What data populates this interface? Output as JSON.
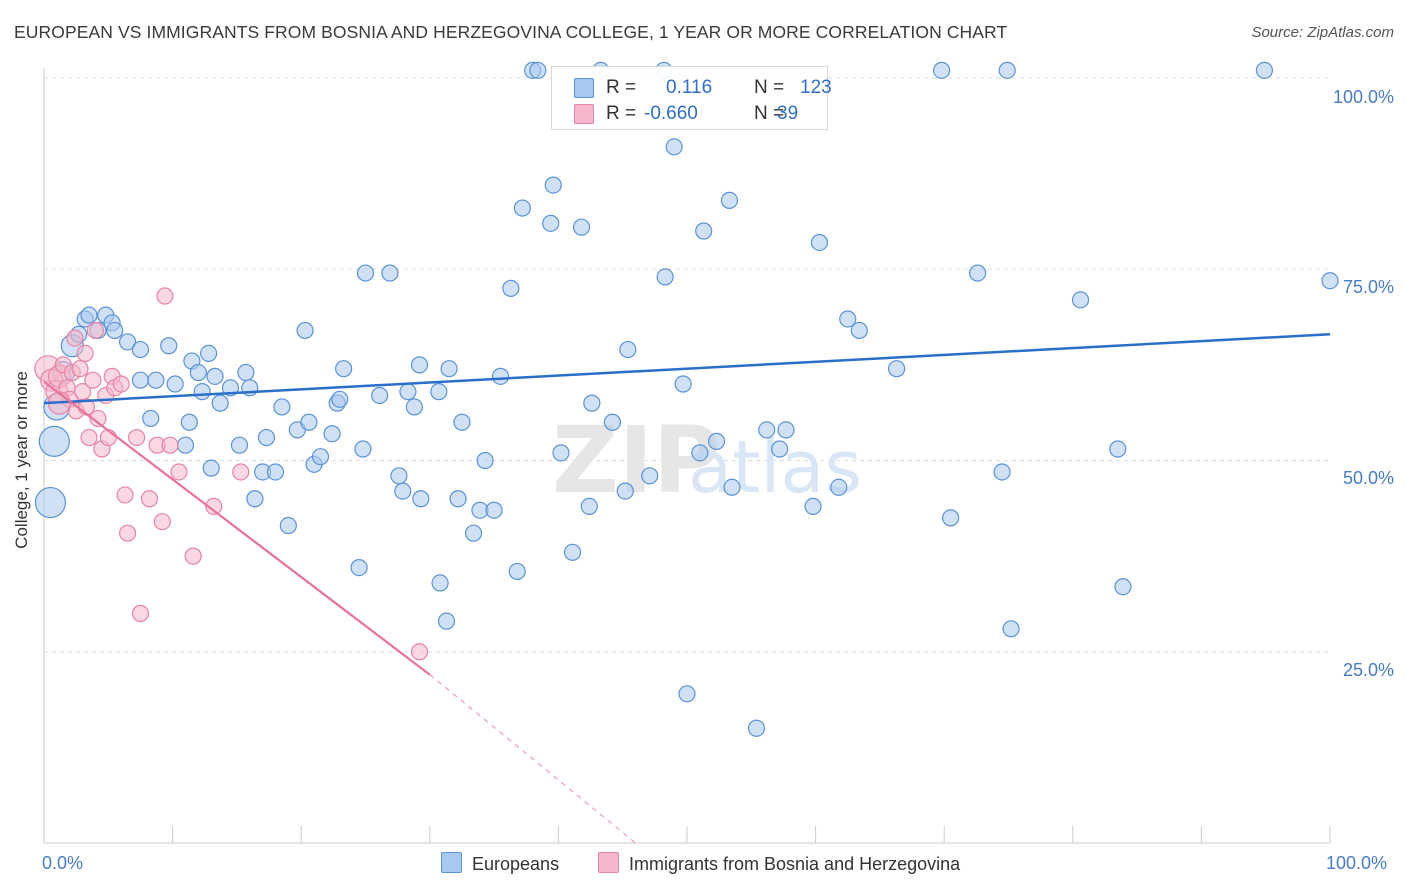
{
  "title": "EUROPEAN VS IMMIGRANTS FROM BOSNIA AND HERZEGOVINA COLLEGE, 1 YEAR OR MORE CORRELATION CHART",
  "source": "Source: ZipAtlas.com",
  "watermark_zip": "ZIP",
  "watermark_atlas": "atlas",
  "colors": {
    "blue_fill": "#a9c8ef",
    "blue_stroke": "#5b93d6",
    "blue_line": "#2a6fc9",
    "pink_fill": "#f5b8ca",
    "pink_stroke": "#e884a4",
    "pink_line": "#e5739a",
    "axis_text": "#4a7cc4",
    "grid": "#dddddd"
  },
  "legend": {
    "rows": [
      {
        "r_label": "R =",
        "r_value": "0.116",
        "n_label": "N =",
        "n_value": "123"
      },
      {
        "r_label": "R =",
        "r_value": "-0.660",
        "n_label": "N =",
        "n_value": "39"
      }
    ]
  },
  "bottom_legend": {
    "europeans": "Europeans",
    "bosnia": "Immigrants from Bosnia and Herzegovina"
  },
  "y_ticks": [
    "100.0%",
    "75.0%",
    "50.0%",
    "25.0%"
  ],
  "x_ticks": {
    "left": "0.0%",
    "right": "100.0%"
  },
  "chart_data": {
    "type": "scatter",
    "title": "EUROPEAN VS IMMIGRANTS FROM BOSNIA AND HERZEGOVINA COLLEGE, 1 YEAR OR MORE CORRELATION CHART",
    "xlabel": "",
    "ylabel": "College, 1 year or more",
    "xlim": [
      0,
      100
    ],
    "ylim": [
      0,
      102
    ],
    "grid": true,
    "legend_position": "top-center",
    "series": [
      {
        "name": "Europeans",
        "R": 0.116,
        "N": 123,
        "trend": {
          "x": [
            0,
            100
          ],
          "y": [
            57.5,
            66.5
          ]
        },
        "points": [
          [
            0.5,
            44.5,
            4
          ],
          [
            0.8,
            52.5,
            4
          ],
          [
            1,
            57,
            3
          ],
          [
            1.5,
            61.5,
            2
          ],
          [
            2.2,
            65,
            2
          ],
          [
            2.7,
            66.5,
            1
          ],
          [
            3.2,
            68.5,
            1
          ],
          [
            3.5,
            69,
            1
          ],
          [
            4.2,
            67,
            1
          ],
          [
            4.8,
            69,
            1
          ],
          [
            5.3,
            68,
            1
          ],
          [
            5.5,
            67,
            1
          ],
          [
            6.5,
            65.5,
            1
          ],
          [
            7.5,
            64.5,
            1
          ],
          [
            7.5,
            60.5,
            1
          ],
          [
            8.3,
            55.5,
            1
          ],
          [
            8.7,
            60.5,
            1
          ],
          [
            9.7,
            65,
            1
          ],
          [
            10.2,
            60,
            1
          ],
          [
            11,
            52,
            1
          ],
          [
            11.3,
            55,
            1
          ],
          [
            11.5,
            63,
            1
          ],
          [
            12,
            61.5,
            1
          ],
          [
            12.3,
            59,
            1
          ],
          [
            12.8,
            64,
            1
          ],
          [
            13,
            49,
            1
          ],
          [
            13.3,
            61,
            1
          ],
          [
            13.7,
            57.5,
            1
          ],
          [
            14.5,
            59.5,
            1
          ],
          [
            15.2,
            52,
            1
          ],
          [
            15.7,
            61.5,
            1
          ],
          [
            16,
            59.5,
            1
          ],
          [
            16.4,
            45,
            1
          ],
          [
            17,
            48.5,
            1
          ],
          [
            17.3,
            53,
            1
          ],
          [
            18,
            48.5,
            1
          ],
          [
            18.5,
            57,
            1
          ],
          [
            19,
            41.5,
            1
          ],
          [
            19.7,
            54,
            1
          ],
          [
            20.3,
            67,
            1
          ],
          [
            20.6,
            55,
            1
          ],
          [
            21,
            49.5,
            1
          ],
          [
            21.5,
            50.5,
            1
          ],
          [
            22.4,
            53.5,
            1
          ],
          [
            22.8,
            57.5,
            1
          ],
          [
            23,
            58,
            1
          ],
          [
            23.3,
            62,
            1
          ],
          [
            24.5,
            36,
            1
          ],
          [
            24.8,
            51.5,
            1
          ],
          [
            25,
            74.5,
            1
          ],
          [
            26.1,
            58.5,
            1
          ],
          [
            26.9,
            74.5,
            1
          ],
          [
            27.6,
            48,
            1
          ],
          [
            27.9,
            46,
            1
          ],
          [
            28.3,
            59,
            1
          ],
          [
            28.8,
            57,
            1
          ],
          [
            29.2,
            62.5,
            1
          ],
          [
            29.3,
            45,
            1
          ],
          [
            30.7,
            59,
            1
          ],
          [
            30.8,
            34,
            1
          ],
          [
            31.3,
            29,
            1
          ],
          [
            31.5,
            62,
            1
          ],
          [
            32.2,
            45,
            1
          ],
          [
            32.5,
            55,
            1
          ],
          [
            33.4,
            40.5,
            1
          ],
          [
            33.9,
            43.5,
            1
          ],
          [
            34.3,
            50,
            1
          ],
          [
            35,
            43.5,
            1
          ],
          [
            35.5,
            61,
            1
          ],
          [
            36.3,
            72.5,
            1
          ],
          [
            36.8,
            35.5,
            1
          ],
          [
            37.2,
            83,
            1
          ],
          [
            38,
            101,
            1
          ],
          [
            38.4,
            101,
            1
          ],
          [
            39.4,
            81,
            1
          ],
          [
            39.6,
            86,
            1
          ],
          [
            40.2,
            51,
            1
          ],
          [
            41.1,
            38,
            1
          ],
          [
            41.8,
            80.5,
            1
          ],
          [
            42.4,
            44,
            1
          ],
          [
            42.6,
            57.5,
            1
          ],
          [
            43.3,
            101,
            1
          ],
          [
            44.2,
            55,
            1
          ],
          [
            45.2,
            46,
            1
          ],
          [
            45.4,
            64.5,
            1
          ],
          [
            47.1,
            48,
            1
          ],
          [
            48.2,
            101,
            1
          ],
          [
            48.3,
            74,
            1
          ],
          [
            49,
            91,
            1
          ],
          [
            49.7,
            60,
            1
          ],
          [
            50,
            19.5,
            1
          ],
          [
            51,
            51,
            1
          ],
          [
            51.3,
            80,
            1
          ],
          [
            52.3,
            52.5,
            1
          ],
          [
            53.3,
            84,
            1
          ],
          [
            53.5,
            46.5,
            1
          ],
          [
            55.4,
            15,
            1
          ],
          [
            56.2,
            54,
            1
          ],
          [
            57.2,
            51.5,
            1
          ],
          [
            57.7,
            54,
            1
          ],
          [
            59.8,
            44,
            1
          ],
          [
            60.3,
            78.5,
            1
          ],
          [
            61.8,
            46.5,
            1
          ],
          [
            62.5,
            68.5,
            1
          ],
          [
            63.4,
            67,
            1
          ],
          [
            66.3,
            62,
            1
          ],
          [
            69.8,
            101,
            1
          ],
          [
            70.5,
            42.5,
            1
          ],
          [
            72.6,
            74.5,
            1
          ],
          [
            74.5,
            48.5,
            1
          ],
          [
            74.9,
            101,
            1
          ],
          [
            75.2,
            28,
            1
          ],
          [
            80.6,
            71,
            1
          ],
          [
            83.5,
            51.5,
            1
          ],
          [
            83.9,
            33.5,
            1
          ],
          [
            94.9,
            101,
            1
          ],
          [
            100,
            73.5,
            1
          ]
        ]
      },
      {
        "name": "Immigrants from Bosnia and Herzegovina",
        "R": -0.66,
        "N": 39,
        "trend": {
          "x": [
            0,
            30
          ],
          "y": [
            60.3,
            22
          ],
          "dashed_to": {
            "x": 46,
            "y": 0
          }
        },
        "points": [
          [
            0.3,
            62,
            3
          ],
          [
            0.6,
            60.5,
            2
          ],
          [
            1,
            59,
            2
          ],
          [
            1.2,
            61,
            2
          ],
          [
            1.5,
            62.5,
            1
          ],
          [
            1.8,
            59.5,
            1
          ],
          [
            2,
            58,
            1
          ],
          [
            2.2,
            61.5,
            1
          ],
          [
            2.5,
            56.5,
            1
          ],
          [
            2.8,
            62,
            1
          ],
          [
            3,
            59,
            1
          ],
          [
            3.2,
            64,
            1
          ],
          [
            3.3,
            57,
            1
          ],
          [
            3.5,
            53,
            1
          ],
          [
            3.8,
            60.5,
            1
          ],
          [
            4,
            67,
            1
          ],
          [
            4.2,
            55.5,
            1
          ],
          [
            4.5,
            51.5,
            1
          ],
          [
            4.8,
            58.5,
            1
          ],
          [
            5,
            53,
            1
          ],
          [
            5.3,
            61,
            1
          ],
          [
            5.5,
            59.5,
            1
          ],
          [
            6,
            60,
            1
          ],
          [
            6.3,
            45.5,
            1
          ],
          [
            6.5,
            40.5,
            1
          ],
          [
            7.2,
            53,
            1
          ],
          [
            7.5,
            30,
            1
          ],
          [
            8.2,
            45,
            1
          ],
          [
            8.8,
            52,
            1
          ],
          [
            9.2,
            42,
            1
          ],
          [
            9.4,
            71.5,
            1
          ],
          [
            9.8,
            52,
            1
          ],
          [
            10.5,
            48.5,
            1
          ],
          [
            11.6,
            37.5,
            1
          ],
          [
            13.2,
            44,
            1
          ],
          [
            15.3,
            48.5,
            1
          ],
          [
            29.2,
            25,
            1
          ],
          [
            1.2,
            57.5,
            2
          ],
          [
            2.4,
            66,
            1
          ]
        ]
      }
    ]
  }
}
